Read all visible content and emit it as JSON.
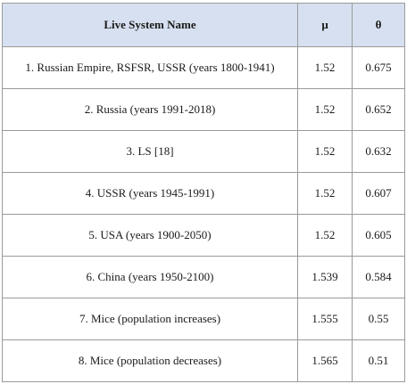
{
  "table": {
    "header": [
      "Live System Name",
      "μ",
      "θ"
    ],
    "rows": [
      [
        "1. Russian Empire, RSFSR, USSR (years 1800-1941)",
        "1.52",
        "0.675"
      ],
      [
        "2. Russia (years 1991-2018)",
        "1.52",
        "0.652"
      ],
      [
        "3. LS [18]",
        "1.52",
        "0.632"
      ],
      [
        "4. USSR (years 1945-1991)",
        "1.52",
        "0.607"
      ],
      [
        "5. USA (years 1900-2050)",
        "1.52",
        "0.605"
      ],
      [
        "6. China (years 1950-2100)",
        "1.539",
        "0.584"
      ],
      [
        "7. Mice (population increases)",
        "1.555",
        "0.55"
      ],
      [
        "8. Mice (population decreases)",
        "1.565",
        "0.51"
      ]
    ]
  }
}
